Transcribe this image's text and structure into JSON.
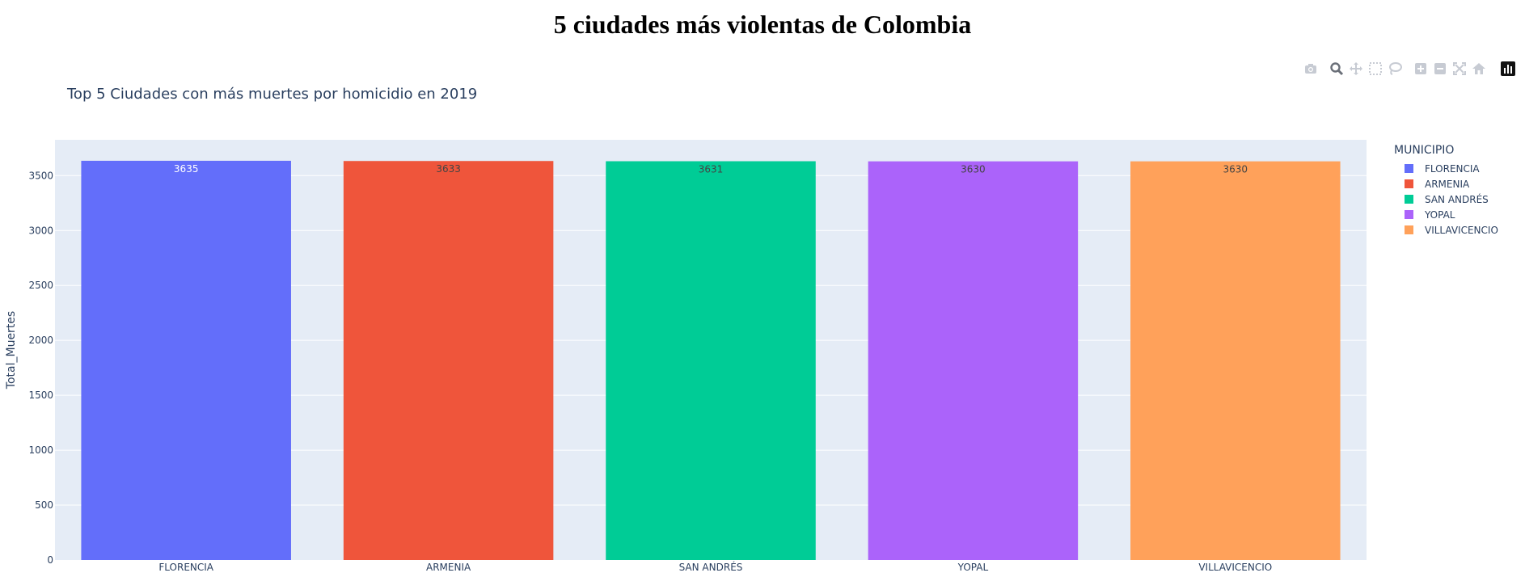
{
  "page": {
    "title": "5 ciudades más violentas de Colombia"
  },
  "modebar": {
    "icons": [
      "camera-icon",
      "zoom-icon",
      "pan-icon",
      "box-select-icon",
      "lasso-select-icon",
      "zoom-in-icon",
      "zoom-out-icon",
      "autoscale-icon",
      "reset-axes-icon",
      "plotly-logo-icon"
    ]
  },
  "legend": {
    "title": "MUNICIPIO",
    "items": [
      {
        "label": "FLORENCIA",
        "color": "#636efa"
      },
      {
        "label": "ARMENIA",
        "color": "#ef553b"
      },
      {
        "label": "SAN ANDRÉS",
        "color": "#00cc96"
      },
      {
        "label": "YOPAL",
        "color": "#ab63fa"
      },
      {
        "label": "VILLAVICENCIO",
        "color": "#ffa15a"
      }
    ]
  },
  "chart_data": {
    "type": "bar",
    "title": "Top 5 Ciudades con más muertes por homicidio en 2019",
    "xlabel": "",
    "ylabel": "Total_Muertes",
    "categories": [
      "FLORENCIA",
      "ARMENIA",
      "SAN ANDRÉS",
      "YOPAL",
      "VILLAVICENCIO"
    ],
    "values": [
      3635,
      3633,
      3631,
      3630,
      3630
    ],
    "data_labels": [
      "3635",
      "3633",
      "3631",
      "3630",
      "3630"
    ],
    "colors": [
      "#636efa",
      "#ef553b",
      "#00cc96",
      "#ab63fa",
      "#ffa15a"
    ],
    "ylim": [
      0,
      3826
    ],
    "yticks": [
      0,
      500,
      1000,
      1500,
      2000,
      2500,
      3000,
      3500
    ],
    "grid": true,
    "plot_bgcolor": "#e5ecf6",
    "legend_position": "right"
  }
}
